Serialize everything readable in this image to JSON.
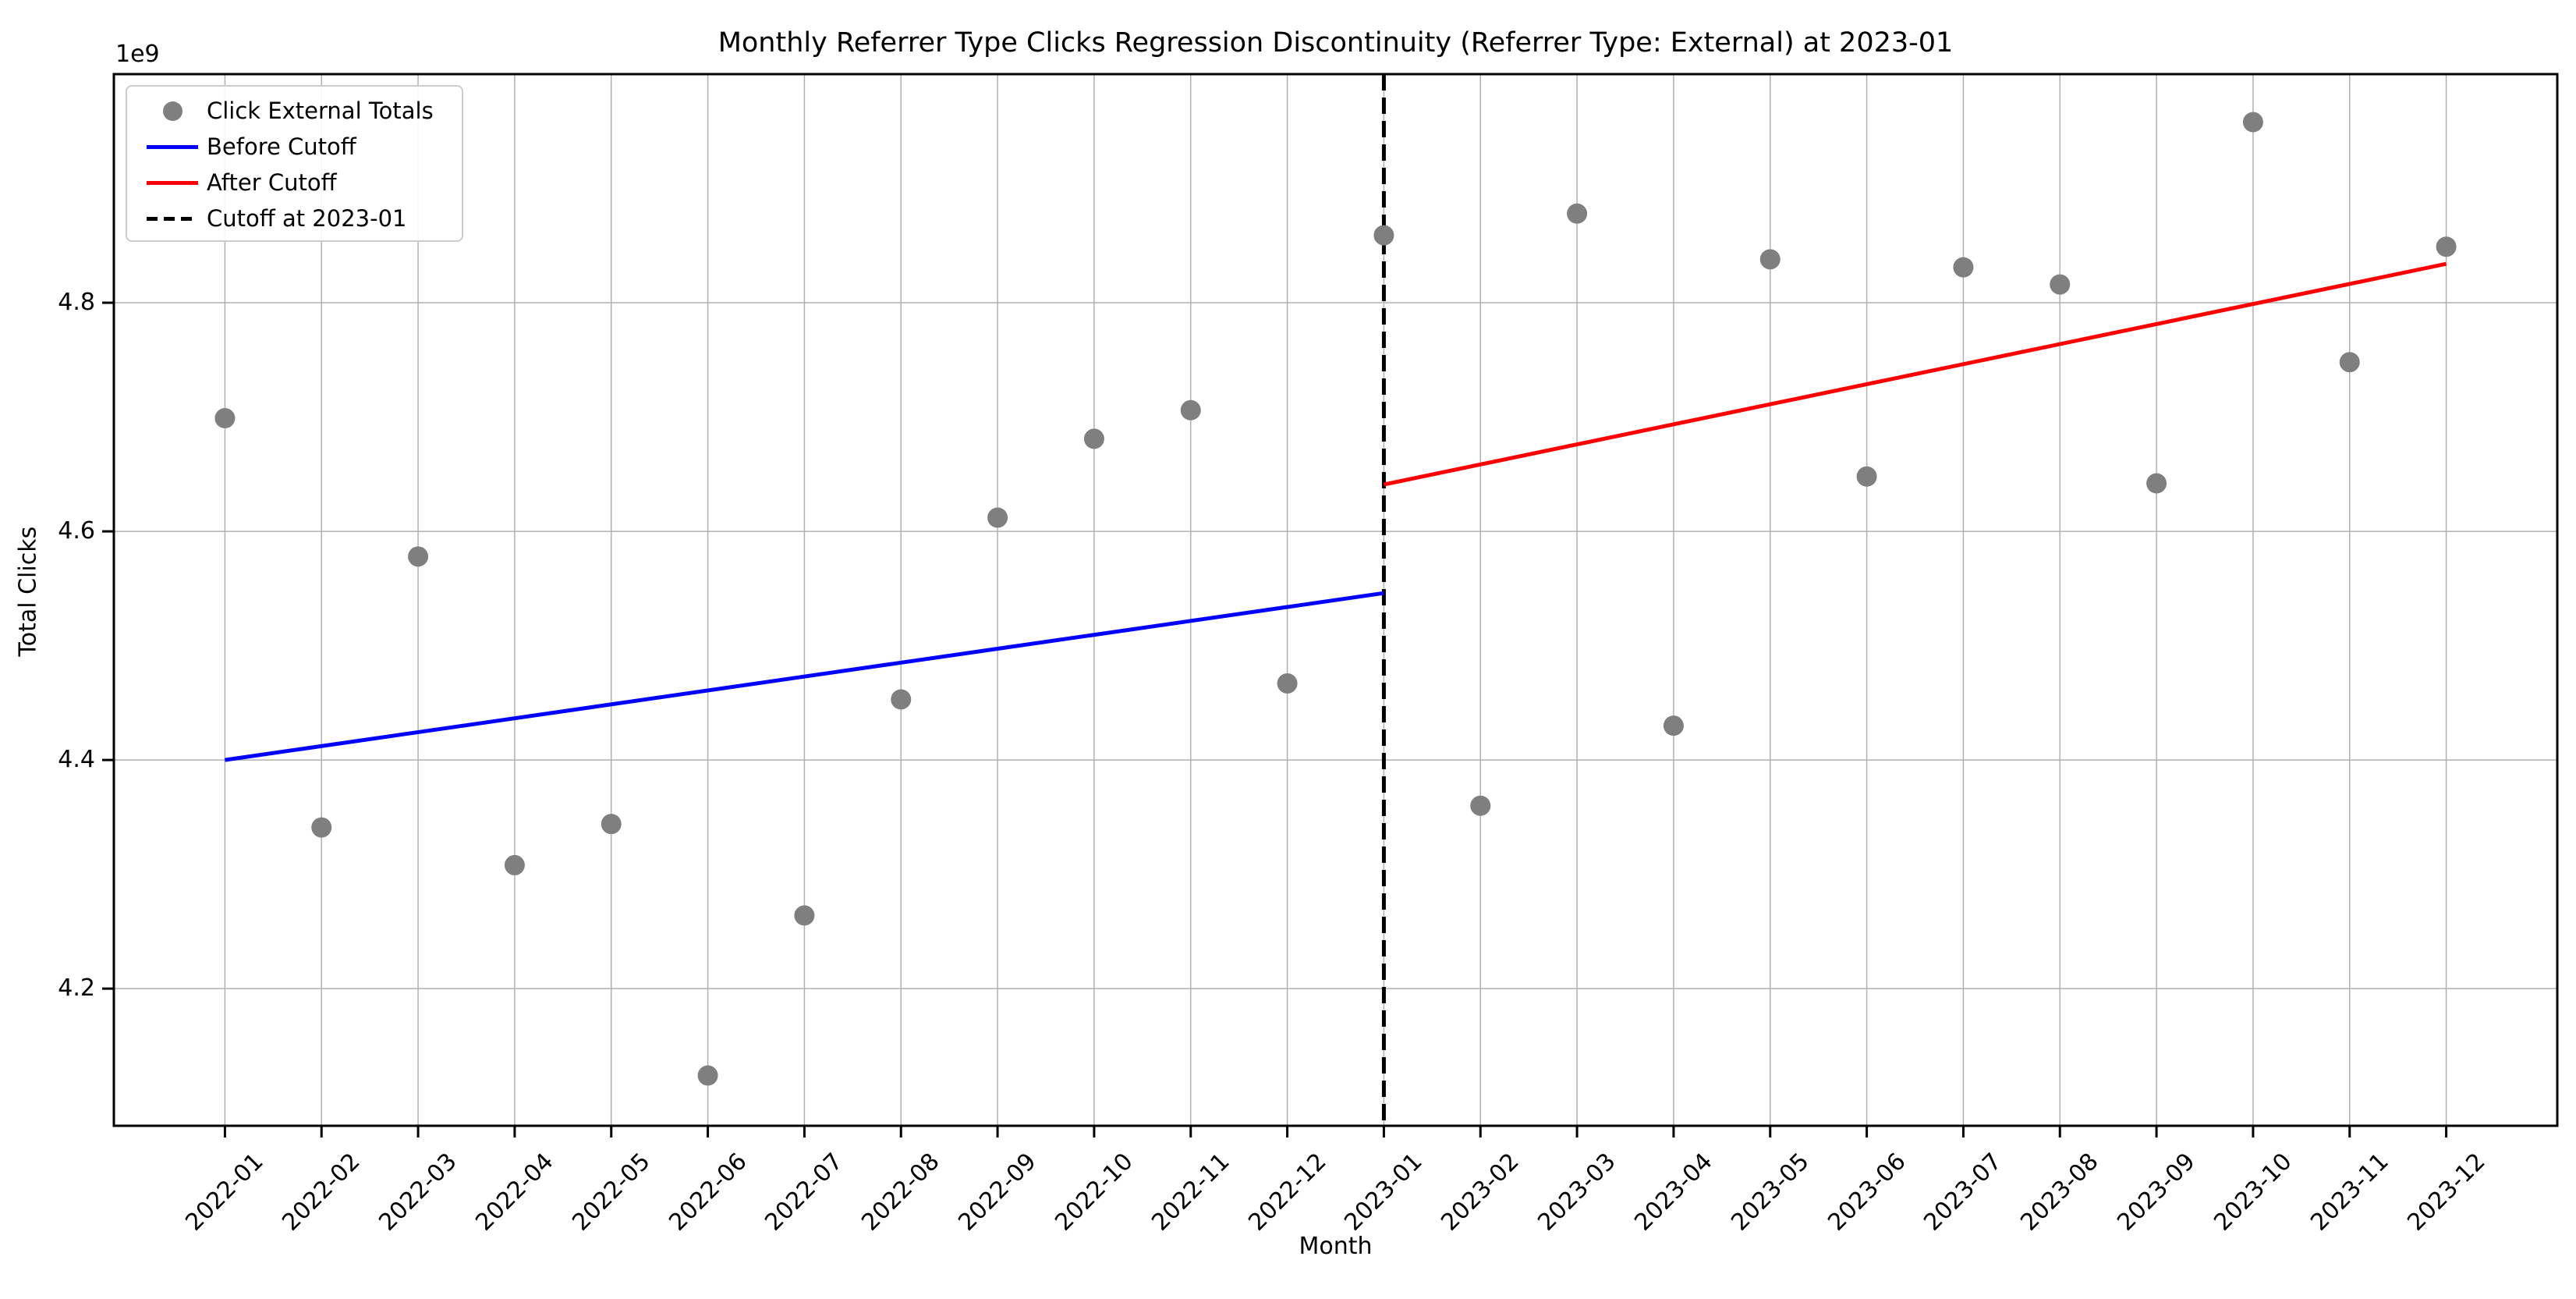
{
  "figure": {
    "title": "Monthly Referrer Type Clicks Regression Discontinuity (Referrer Type: External) at 2023-01"
  },
  "axes": {
    "x_label": "Month",
    "y_label": "Total Clicks",
    "offset_text": "1e9",
    "y_tick_labels": [
      "4.2",
      "4.4",
      "4.6",
      "4.8"
    ]
  },
  "legend": {
    "items": [
      {
        "label": "Click External Totals",
        "marker": "dot"
      },
      {
        "label": "Before Cutoff",
        "marker": "line"
      },
      {
        "label": "After Cutoff",
        "marker": "line"
      },
      {
        "label": "Cutoff at 2023-01",
        "marker": "dashed-line"
      }
    ]
  },
  "colors": {
    "scatter": "#7f7f7f",
    "before_line": "#0000ff",
    "after_line": "#ff0000",
    "cutoff_line": "#000000",
    "grid": "#b0b0b0",
    "spine": "#000000",
    "legend_border": "#cccccc",
    "text": "#000000"
  },
  "chart_data": {
    "type": "scatter",
    "title": "Monthly Referrer Type Clicks Regression Discontinuity (Referrer Type: External) at 2023-01",
    "xlabel": "Month",
    "ylabel": "Total Clicks",
    "unit_multiplier": "1e9",
    "grid": true,
    "legend_position": "upper left",
    "ylim": [
      4.08,
      5.0
    ],
    "yticks": [
      4.2,
      4.4,
      4.6,
      4.8
    ],
    "x_margin_months": 1.15,
    "categories": [
      "2022-01",
      "2022-02",
      "2022-03",
      "2022-04",
      "2022-05",
      "2022-06",
      "2022-07",
      "2022-08",
      "2022-09",
      "2022-10",
      "2022-11",
      "2022-12",
      "2023-01",
      "2023-02",
      "2023-03",
      "2023-04",
      "2023-05",
      "2023-06",
      "2023-07",
      "2023-08",
      "2023-09",
      "2023-10",
      "2023-11",
      "2023-12"
    ],
    "series": [
      {
        "name": "Click External Totals",
        "kind": "scatter",
        "values": [
          4.699,
          4.341,
          4.578,
          4.308,
          4.344,
          4.124,
          4.264,
          4.453,
          4.612,
          4.681,
          4.706,
          4.467,
          4.859,
          4.36,
          4.878,
          4.43,
          4.838,
          4.648,
          4.831,
          4.816,
          4.642,
          4.958,
          4.748,
          4.849
        ]
      },
      {
        "name": "Before Cutoff",
        "kind": "line",
        "x": [
          0,
          12
        ],
        "values": [
          4.4,
          4.546
        ]
      },
      {
        "name": "After Cutoff",
        "kind": "line",
        "x": [
          12,
          23
        ],
        "values": [
          4.641,
          4.834
        ]
      },
      {
        "name": "Cutoff at 2023-01",
        "kind": "vline",
        "x": 12
      }
    ]
  }
}
